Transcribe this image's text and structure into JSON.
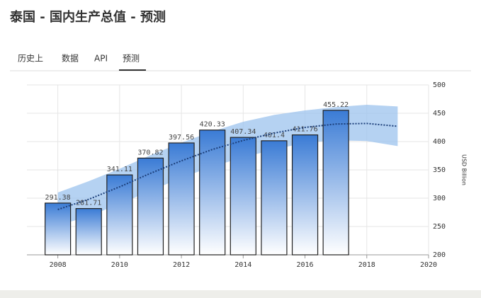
{
  "header": {
    "title": "泰国 - 国内生产总值 - 预测",
    "tabs": [
      "历史上",
      "数据",
      "API",
      "预测"
    ]
  },
  "chart_data": {
    "type": "bar",
    "x": [
      2008,
      2009,
      2010,
      2011,
      2012,
      2013,
      2014,
      2015,
      2016,
      2017
    ],
    "series": [
      {
        "color": "#3a7bd5",
        "values": [
          291.38,
          281.71,
          341.11,
          370.82,
          397.56,
          420.33,
          407.34,
          401.4,
          411.76,
          455.22
        ]
      }
    ],
    "trend": {
      "color": "#1c3f7a",
      "band_color": "#9cc3ee",
      "x": [
        2008,
        2009,
        2010,
        2011,
        2012,
        2013,
        2014,
        2015,
        2016,
        2017,
        2018,
        2019
      ],
      "values": [
        280,
        298,
        320,
        344,
        366,
        386,
        402,
        415,
        425,
        431,
        432,
        427
      ],
      "upper": [
        310,
        330,
        352,
        376,
        398,
        418,
        435,
        447,
        455,
        461,
        465,
        462
      ],
      "lower": [
        252,
        268,
        290,
        313,
        336,
        356,
        372,
        386,
        398,
        402,
        401,
        392
      ]
    },
    "y_label": "USD Billion",
    "xlim": [
      2007,
      2020
    ],
    "xticks": [
      2008,
      2010,
      2012,
      2014,
      2016,
      2018,
      2020
    ],
    "ylim": [
      200,
      500
    ],
    "yticks": [
      200,
      250,
      300,
      350,
      400,
      450,
      500
    ],
    "grid": true
  }
}
